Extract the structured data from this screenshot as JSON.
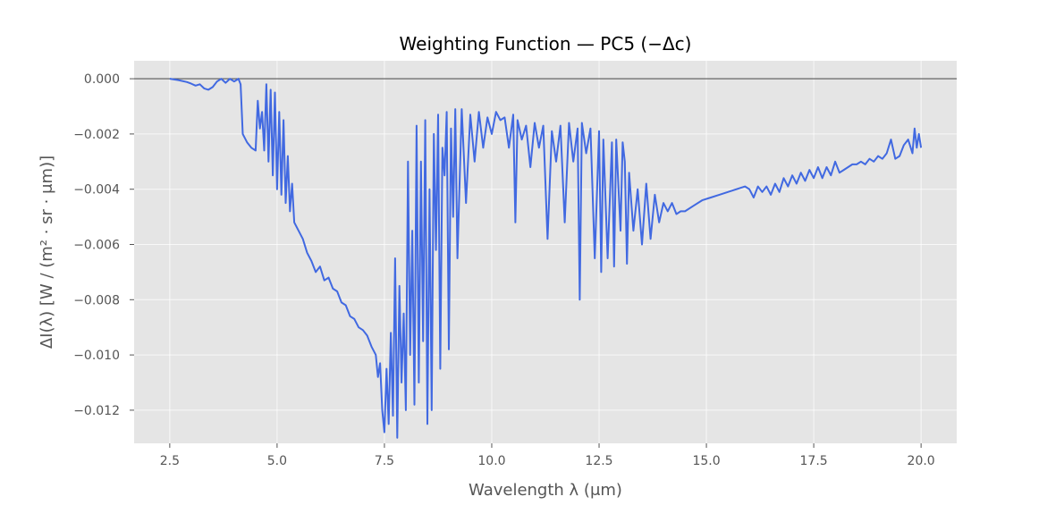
{
  "chart_data": {
    "type": "line",
    "title": "Weighting Function — PC5 (−Δc)",
    "xlabel": "Wavelength λ (μm)",
    "ylabel": "ΔI(λ) [W / (m² · sr · μm)]",
    "xlim": [
      1.67,
      20.83
    ],
    "ylim": [
      -0.0132,
      0.00065
    ],
    "x_ticks": [
      2.5,
      5.0,
      7.5,
      10.0,
      12.5,
      15.0,
      17.5,
      20.0
    ],
    "x_tick_labels": [
      "2.5",
      "5.0",
      "7.5",
      "10.0",
      "12.5",
      "15.0",
      "17.5",
      "20.0"
    ],
    "y_ticks": [
      0.0,
      -0.002,
      -0.004,
      -0.006,
      -0.008,
      -0.01,
      -0.012
    ],
    "y_tick_labels": [
      "0.000",
      "−0.002",
      "−0.004",
      "−0.006",
      "−0.008",
      "−0.010",
      "−0.012"
    ],
    "grid": true,
    "reference_line": {
      "y": 0.0,
      "color": "#555555"
    },
    "series": [
      {
        "color": "#4169e1",
        "points": [
          [
            2.5,
            0.0
          ],
          [
            2.7,
            -5e-05
          ],
          [
            2.9,
            -0.00012
          ],
          [
            3.0,
            -0.00018
          ],
          [
            3.1,
            -0.00025
          ],
          [
            3.2,
            -0.0002
          ],
          [
            3.3,
            -0.00035
          ],
          [
            3.4,
            -0.0004
          ],
          [
            3.5,
            -0.0003
          ],
          [
            3.6,
            -0.0001
          ],
          [
            3.7,
            0.0
          ],
          [
            3.8,
            -0.00015
          ],
          [
            3.9,
            0.0
          ],
          [
            4.0,
            -0.0001
          ],
          [
            4.1,
            0.0
          ],
          [
            4.15,
            -0.0002
          ],
          [
            4.2,
            -0.002
          ],
          [
            4.3,
            -0.0023
          ],
          [
            4.4,
            -0.0025
          ],
          [
            4.5,
            -0.0026
          ],
          [
            4.55,
            -0.0008
          ],
          [
            4.6,
            -0.0018
          ],
          [
            4.65,
            -0.0012
          ],
          [
            4.7,
            -0.0026
          ],
          [
            4.75,
            -0.0002
          ],
          [
            4.8,
            -0.003
          ],
          [
            4.85,
            -0.0004
          ],
          [
            4.9,
            -0.0035
          ],
          [
            4.95,
            -0.0005
          ],
          [
            5.0,
            -0.004
          ],
          [
            5.05,
            -0.0012
          ],
          [
            5.1,
            -0.0042
          ],
          [
            5.15,
            -0.0015
          ],
          [
            5.2,
            -0.0045
          ],
          [
            5.25,
            -0.0028
          ],
          [
            5.3,
            -0.0048
          ],
          [
            5.35,
            -0.0038
          ],
          [
            5.4,
            -0.0052
          ],
          [
            5.5,
            -0.0055
          ],
          [
            5.6,
            -0.0058
          ],
          [
            5.7,
            -0.0063
          ],
          [
            5.8,
            -0.0066
          ],
          [
            5.9,
            -0.007
          ],
          [
            6.0,
            -0.0068
          ],
          [
            6.1,
            -0.0073
          ],
          [
            6.2,
            -0.0072
          ],
          [
            6.3,
            -0.0076
          ],
          [
            6.4,
            -0.0077
          ],
          [
            6.5,
            -0.0081
          ],
          [
            6.6,
            -0.0082
          ],
          [
            6.7,
            -0.0086
          ],
          [
            6.8,
            -0.0087
          ],
          [
            6.9,
            -0.009
          ],
          [
            7.0,
            -0.0091
          ],
          [
            7.1,
            -0.0093
          ],
          [
            7.2,
            -0.0097
          ],
          [
            7.3,
            -0.01
          ],
          [
            7.35,
            -0.0108
          ],
          [
            7.4,
            -0.0103
          ],
          [
            7.45,
            -0.012
          ],
          [
            7.5,
            -0.0128
          ],
          [
            7.55,
            -0.0105
          ],
          [
            7.6,
            -0.0125
          ],
          [
            7.65,
            -0.0092
          ],
          [
            7.7,
            -0.0122
          ],
          [
            7.75,
            -0.0065
          ],
          [
            7.8,
            -0.013
          ],
          [
            7.85,
            -0.0075
          ],
          [
            7.9,
            -0.011
          ],
          [
            7.95,
            -0.0085
          ],
          [
            8.0,
            -0.012
          ],
          [
            8.05,
            -0.003
          ],
          [
            8.1,
            -0.01
          ],
          [
            8.15,
            -0.0055
          ],
          [
            8.2,
            -0.0118
          ],
          [
            8.25,
            -0.0017
          ],
          [
            8.3,
            -0.011
          ],
          [
            8.35,
            -0.003
          ],
          [
            8.4,
            -0.0095
          ],
          [
            8.45,
            -0.0015
          ],
          [
            8.5,
            -0.0125
          ],
          [
            8.55,
            -0.004
          ],
          [
            8.6,
            -0.012
          ],
          [
            8.65,
            -0.002
          ],
          [
            8.7,
            -0.0062
          ],
          [
            8.75,
            -0.0013
          ],
          [
            8.8,
            -0.0105
          ],
          [
            8.85,
            -0.0025
          ],
          [
            8.9,
            -0.0035
          ],
          [
            8.95,
            -0.0012
          ],
          [
            9.0,
            -0.0098
          ],
          [
            9.05,
            -0.0018
          ],
          [
            9.1,
            -0.005
          ],
          [
            9.15,
            -0.0011
          ],
          [
            9.2,
            -0.0065
          ],
          [
            9.3,
            -0.0011
          ],
          [
            9.4,
            -0.0045
          ],
          [
            9.5,
            -0.0013
          ],
          [
            9.6,
            -0.003
          ],
          [
            9.7,
            -0.0012
          ],
          [
            9.8,
            -0.0025
          ],
          [
            9.9,
            -0.0014
          ],
          [
            10.0,
            -0.002
          ],
          [
            10.1,
            -0.0012
          ],
          [
            10.2,
            -0.0015
          ],
          [
            10.3,
            -0.0014
          ],
          [
            10.4,
            -0.0025
          ],
          [
            10.5,
            -0.0013
          ],
          [
            10.55,
            -0.0052
          ],
          [
            10.6,
            -0.0015
          ],
          [
            10.7,
            -0.0022
          ],
          [
            10.8,
            -0.0017
          ],
          [
            10.9,
            -0.0032
          ],
          [
            11.0,
            -0.0016
          ],
          [
            11.1,
            -0.0025
          ],
          [
            11.2,
            -0.0017
          ],
          [
            11.3,
            -0.0058
          ],
          [
            11.4,
            -0.0019
          ],
          [
            11.5,
            -0.003
          ],
          [
            11.6,
            -0.0017
          ],
          [
            11.7,
            -0.0052
          ],
          [
            11.8,
            -0.0016
          ],
          [
            11.9,
            -0.003
          ],
          [
            12.0,
            -0.0018
          ],
          [
            12.05,
            -0.008
          ],
          [
            12.1,
            -0.0016
          ],
          [
            12.2,
            -0.0027
          ],
          [
            12.3,
            -0.0018
          ],
          [
            12.4,
            -0.0065
          ],
          [
            12.5,
            -0.0019
          ],
          [
            12.55,
            -0.007
          ],
          [
            12.6,
            -0.0022
          ],
          [
            12.7,
            -0.0065
          ],
          [
            12.8,
            -0.0023
          ],
          [
            12.85,
            -0.0068
          ],
          [
            12.9,
            -0.0022
          ],
          [
            13.0,
            -0.0055
          ],
          [
            13.05,
            -0.0023
          ],
          [
            13.1,
            -0.003
          ],
          [
            13.15,
            -0.0067
          ],
          [
            13.2,
            -0.0034
          ],
          [
            13.3,
            -0.0055
          ],
          [
            13.4,
            -0.004
          ],
          [
            13.5,
            -0.006
          ],
          [
            13.6,
            -0.0038
          ],
          [
            13.7,
            -0.0058
          ],
          [
            13.8,
            -0.0042
          ],
          [
            13.9,
            -0.0052
          ],
          [
            14.0,
            -0.0045
          ],
          [
            14.1,
            -0.0048
          ],
          [
            14.2,
            -0.0045
          ],
          [
            14.3,
            -0.0049
          ],
          [
            14.4,
            -0.0048
          ],
          [
            14.5,
            -0.0048
          ],
          [
            14.7,
            -0.0046
          ],
          [
            14.9,
            -0.0044
          ],
          [
            15.1,
            -0.0043
          ],
          [
            15.3,
            -0.0042
          ],
          [
            15.5,
            -0.0041
          ],
          [
            15.7,
            -0.004
          ],
          [
            15.9,
            -0.0039
          ],
          [
            16.0,
            -0.004
          ],
          [
            16.1,
            -0.0043
          ],
          [
            16.2,
            -0.0039
          ],
          [
            16.3,
            -0.0041
          ],
          [
            16.4,
            -0.0039
          ],
          [
            16.5,
            -0.0042
          ],
          [
            16.6,
            -0.0038
          ],
          [
            16.7,
            -0.0041
          ],
          [
            16.8,
            -0.0036
          ],
          [
            16.9,
            -0.0039
          ],
          [
            17.0,
            -0.0035
          ],
          [
            17.1,
            -0.0038
          ],
          [
            17.2,
            -0.0034
          ],
          [
            17.3,
            -0.0037
          ],
          [
            17.4,
            -0.0033
          ],
          [
            17.5,
            -0.0036
          ],
          [
            17.6,
            -0.0032
          ],
          [
            17.7,
            -0.0036
          ],
          [
            17.8,
            -0.0032
          ],
          [
            17.9,
            -0.0035
          ],
          [
            18.0,
            -0.003
          ],
          [
            18.1,
            -0.0034
          ],
          [
            18.2,
            -0.0033
          ],
          [
            18.3,
            -0.0032
          ],
          [
            18.4,
            -0.0031
          ],
          [
            18.5,
            -0.0031
          ],
          [
            18.6,
            -0.003
          ],
          [
            18.7,
            -0.0031
          ],
          [
            18.8,
            -0.0029
          ],
          [
            18.9,
            -0.003
          ],
          [
            19.0,
            -0.0028
          ],
          [
            19.1,
            -0.0029
          ],
          [
            19.2,
            -0.0027
          ],
          [
            19.3,
            -0.0022
          ],
          [
            19.4,
            -0.0029
          ],
          [
            19.5,
            -0.0028
          ],
          [
            19.6,
            -0.0024
          ],
          [
            19.7,
            -0.0022
          ],
          [
            19.8,
            -0.0027
          ],
          [
            19.85,
            -0.0018
          ],
          [
            19.9,
            -0.0025
          ],
          [
            19.95,
            -0.002
          ],
          [
            20.0,
            -0.0025
          ]
        ]
      }
    ]
  }
}
